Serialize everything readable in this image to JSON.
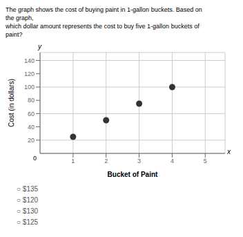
{
  "chart_data": {
    "type": "scatter",
    "title": "The graph shows the cost of buying paint in 1-gallon buckets. Based on\nthe graph,\nwhich dollar amount represents the cost to buy five 1-gallon buckets of\npaint?",
    "x_label": "Bucket of Paint",
    "y_label": "Cost (in dollars)",
    "x": [
      1,
      2,
      3,
      4
    ],
    "values": [
      25,
      50,
      75,
      100
    ],
    "color": "#333333",
    "xlim": [
      0,
      5.6
    ],
    "ylim": [
      0,
      152
    ],
    "xticks": [
      1,
      2,
      3,
      4,
      5
    ],
    "yticks": [
      20,
      40,
      60,
      80,
      100,
      120,
      140
    ],
    "grid": true,
    "annotations": [
      "x",
      "y",
      "0"
    ],
    "choices": [
      "○ $135",
      "○ $120",
      "○ $130",
      "○ $125"
    ]
  }
}
